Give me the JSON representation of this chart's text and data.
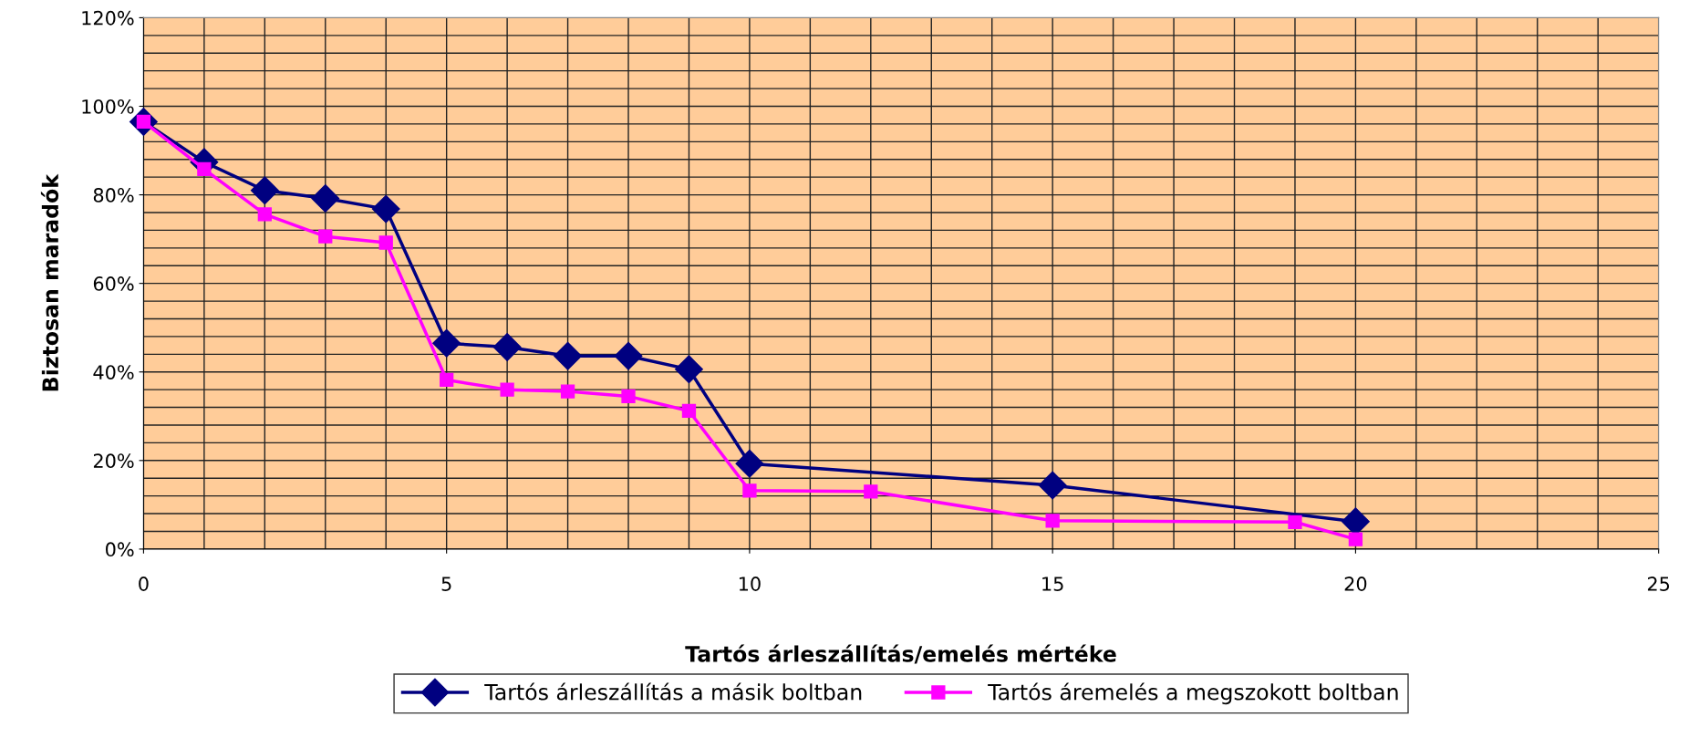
{
  "chart_data": {
    "type": "line",
    "xlabel": "Tartós árleszállítás/emelés mértéke",
    "ylabel": "Biztosan maradók",
    "xlim": [
      0,
      25
    ],
    "xticks": [
      0,
      5,
      10,
      15,
      20,
      25
    ],
    "ylim": [
      0,
      120
    ],
    "yticks": [
      {
        "value": 0,
        "label": "0%"
      },
      {
        "value": 20,
        "label": "20%"
      },
      {
        "value": 40,
        "label": "40%"
      },
      {
        "value": 60,
        "label": "60%"
      },
      {
        "value": 80,
        "label": "80%"
      },
      {
        "value": 100,
        "label": "100%"
      },
      {
        "value": 120,
        "label": "120%"
      }
    ],
    "grid": true,
    "legend": "bottom",
    "line_style": "solid",
    "series": [
      {
        "name": "Tartós árleszállítás a másik boltban",
        "color": "#000080",
        "marker": "diamond",
        "x": [
          0,
          1,
          2,
          3,
          4,
          5,
          6,
          7,
          8,
          9,
          10,
          15,
          20
        ],
        "values": [
          96.5,
          87.4,
          81.0,
          79.2,
          76.8,
          46.5,
          45.6,
          43.6,
          43.6,
          40.6,
          19.3,
          14.4,
          6.2
        ]
      },
      {
        "name": "Tartós áremelés a megszokott boltban",
        "color": "#ff00ff",
        "marker": "square",
        "x": [
          0,
          1,
          2,
          3,
          4,
          5,
          6,
          7,
          8,
          9,
          10,
          12,
          15,
          19,
          20
        ],
        "values": [
          96.5,
          85.8,
          75.6,
          70.6,
          69.2,
          38.2,
          36.0,
          35.6,
          34.5,
          31.2,
          13.2,
          13.0,
          6.4,
          6.1,
          2.2
        ]
      }
    ]
  }
}
